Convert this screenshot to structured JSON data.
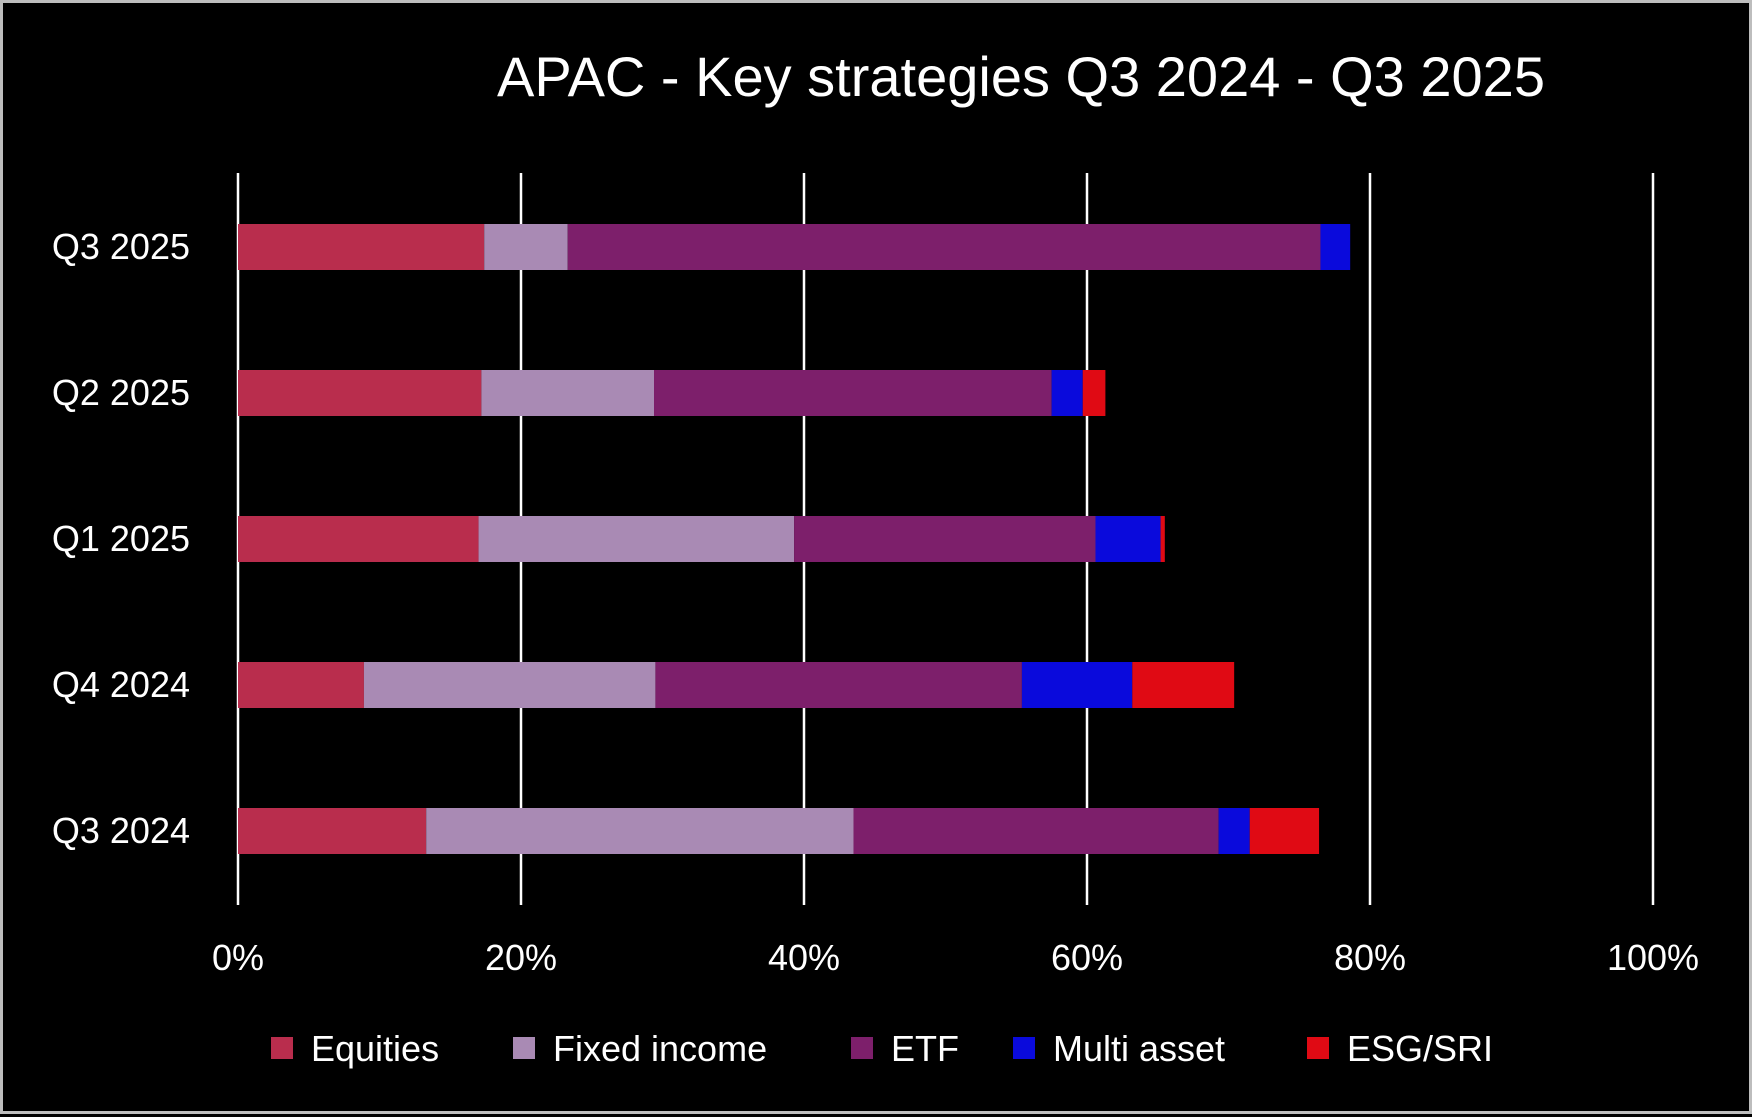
{
  "chart_data": {
    "type": "bar",
    "orientation": "horizontal",
    "stacked": true,
    "title": "APAC - Key strategies Q3 2024 - Q3 2025",
    "xlabel": "",
    "ylabel": "",
    "xlim": [
      0,
      100
    ],
    "x_unit": "%",
    "grid": "vertical",
    "legend_position": "bottom",
    "x_ticks": [
      "0%",
      "20%",
      "40%",
      "60%",
      "80%",
      "100%"
    ],
    "categories": [
      "Q3 2025",
      "Q2 2025",
      "Q1 2025",
      "Q4 2024",
      "Q3 2024"
    ],
    "series": [
      {
        "name": "Equities",
        "color": "#b92d4d",
        "values": [
          17.4,
          17.2,
          17.0,
          8.9,
          13.3
        ]
      },
      {
        "name": "Fixed income",
        "color": "#a98ab4",
        "values": [
          5.9,
          12.2,
          22.3,
          20.6,
          30.2
        ]
      },
      {
        "name": "ETF",
        "color": "#7d1f6b",
        "values": [
          53.2,
          28.1,
          21.3,
          25.9,
          25.8
        ]
      },
      {
        "name": "Multi asset",
        "color": "#0a0adc",
        "values": [
          2.1,
          2.2,
          4.6,
          7.8,
          2.2
        ]
      },
      {
        "name": "ESG/SRI",
        "color": "#e00a14",
        "values": [
          0,
          1.6,
          0.3,
          7.2,
          4.9
        ]
      }
    ]
  }
}
